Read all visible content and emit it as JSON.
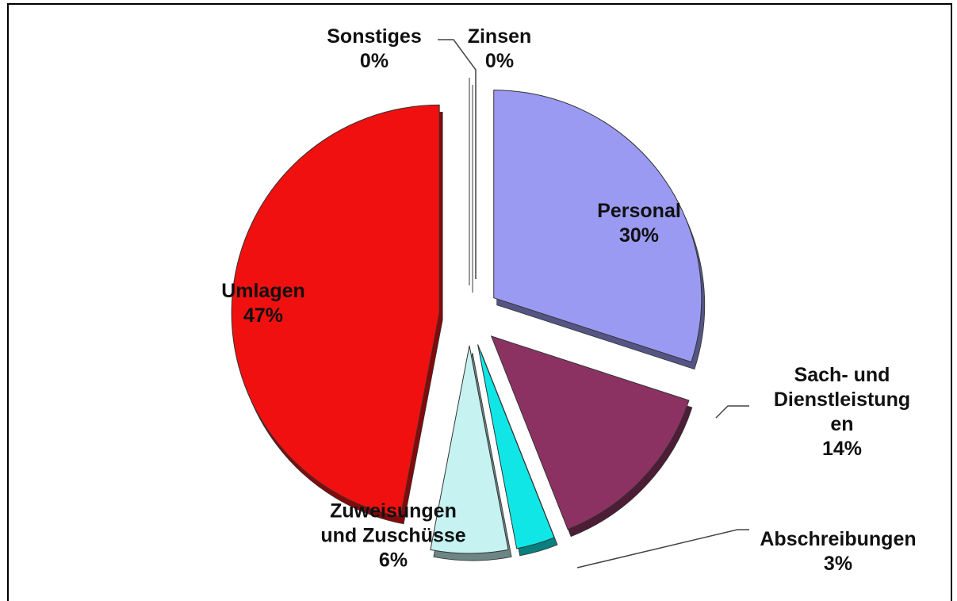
{
  "chart_data": {
    "type": "pie",
    "categories": [
      "Personal",
      "Sach- und Dienstleistungen",
      "Abschreibungen",
      "Zuweisungen und Zuschüsse",
      "Umlagen",
      "Sonstiges",
      "Zinsen"
    ],
    "values": [
      30,
      14,
      3,
      6,
      47,
      0,
      0
    ],
    "value_labels": [
      "30%",
      "14%",
      "3%",
      "6%",
      "47%",
      "0%",
      "0%"
    ],
    "colors": [
      "#9a9af2",
      "#8c3262",
      "#10e6e6",
      "#c6f2f2",
      "#f01010",
      "#7f7f7f",
      "#4f81bd"
    ]
  }
}
